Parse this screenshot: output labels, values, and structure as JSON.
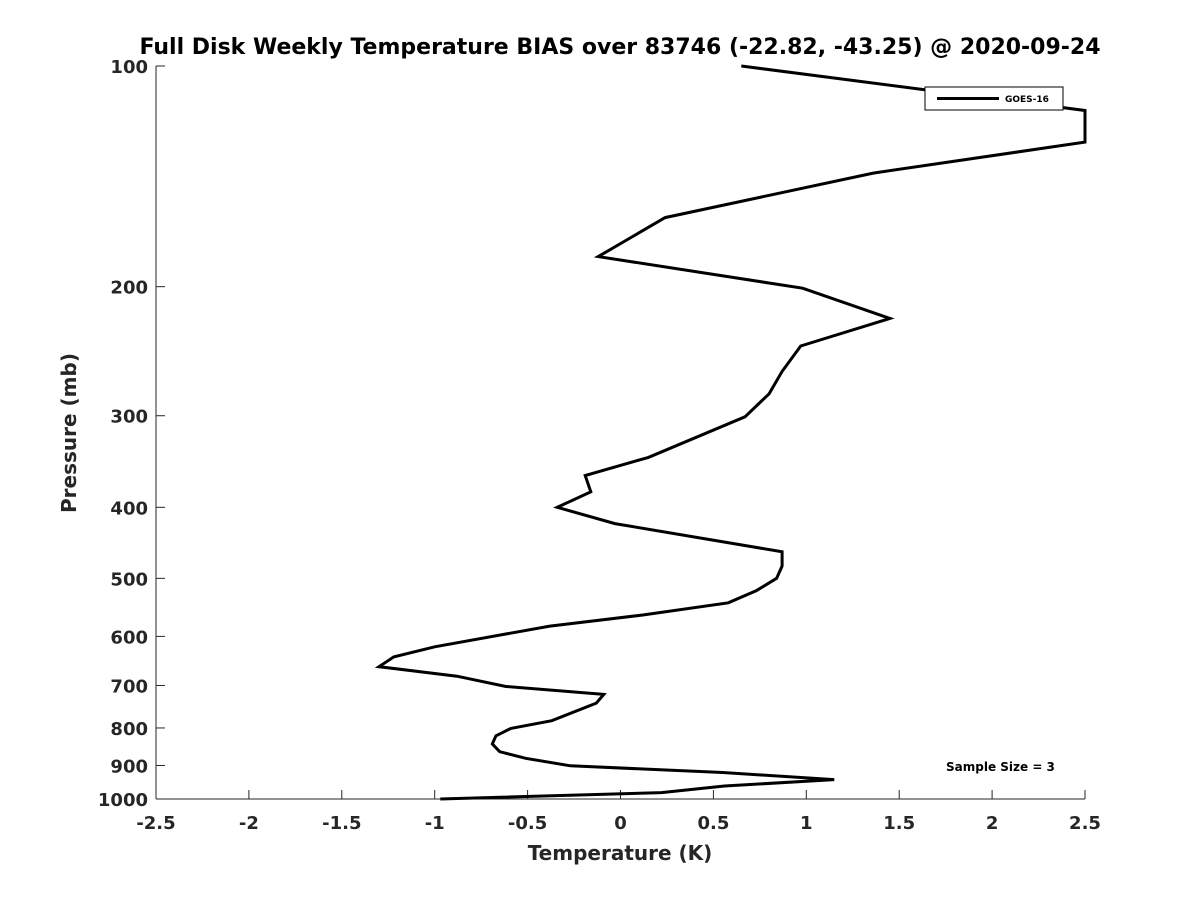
{
  "chart_data": {
    "type": "line",
    "title": "Full Disk Weekly Temperature BIAS over 83746 (-22.82, -43.25) @ 2020-09-24",
    "xlabel": "Temperature (K)",
    "ylabel": "Pressure (mb)",
    "xlim": [
      -2.5,
      2.5
    ],
    "ylim": [
      100,
      1000
    ],
    "y_scale": "log",
    "y_reversed": true,
    "grid": false,
    "legend_position": "top-right",
    "x_ticks": [
      "-2.5",
      "-2",
      "-1.5",
      "-1",
      "-0.5",
      "0",
      "0.5",
      "1",
      "1.5",
      "2",
      "2.5"
    ],
    "x_tick_values": [
      -2.5,
      -2,
      -1.5,
      -1,
      -0.5,
      0,
      0.5,
      1,
      1.5,
      2,
      2.5
    ],
    "y_ticks": [
      "100",
      "200",
      "300",
      "400",
      "500",
      "600",
      "700",
      "800",
      "900",
      "1000"
    ],
    "y_tick_values": [
      100,
      200,
      300,
      400,
      500,
      600,
      700,
      800,
      900,
      1000
    ],
    "annotation": "Sample Size = 3",
    "series": [
      {
        "name": "GOES-16",
        "color": "#000000",
        "points": [
          {
            "x": 0.65,
            "y": 100
          },
          {
            "x": 2.5,
            "y": 115
          },
          {
            "x": 2.5,
            "y": 127
          },
          {
            "x": 1.36,
            "y": 140
          },
          {
            "x": 0.24,
            "y": 161
          },
          {
            "x": -0.12,
            "y": 182
          },
          {
            "x": 0.98,
            "y": 201
          },
          {
            "x": 1.45,
            "y": 221
          },
          {
            "x": 0.97,
            "y": 241
          },
          {
            "x": 0.87,
            "y": 261
          },
          {
            "x": 0.8,
            "y": 280
          },
          {
            "x": 0.67,
            "y": 301
          },
          {
            "x": 0.15,
            "y": 342
          },
          {
            "x": -0.19,
            "y": 362
          },
          {
            "x": -0.16,
            "y": 381
          },
          {
            "x": -0.34,
            "y": 400
          },
          {
            "x": -0.03,
            "y": 421
          },
          {
            "x": 0.87,
            "y": 460
          },
          {
            "x": 0.87,
            "y": 481
          },
          {
            "x": 0.84,
            "y": 500
          },
          {
            "x": 0.73,
            "y": 520
          },
          {
            "x": 0.58,
            "y": 540
          },
          {
            "x": 0.12,
            "y": 561
          },
          {
            "x": -0.38,
            "y": 581
          },
          {
            "x": -1.0,
            "y": 620
          },
          {
            "x": -1.22,
            "y": 640
          },
          {
            "x": -1.3,
            "y": 660
          },
          {
            "x": -0.88,
            "y": 680
          },
          {
            "x": -0.62,
            "y": 702
          },
          {
            "x": -0.09,
            "y": 720
          },
          {
            "x": -0.13,
            "y": 740
          },
          {
            "x": -0.37,
            "y": 782
          },
          {
            "x": -0.59,
            "y": 801
          },
          {
            "x": -0.67,
            "y": 820
          },
          {
            "x": -0.69,
            "y": 841
          },
          {
            "x": -0.65,
            "y": 862
          },
          {
            "x": -0.51,
            "y": 880
          },
          {
            "x": -0.27,
            "y": 901
          },
          {
            "x": 0.55,
            "y": 920
          },
          {
            "x": 1.15,
            "y": 941
          },
          {
            "x": 0.56,
            "y": 960
          },
          {
            "x": 0.22,
            "y": 980
          },
          {
            "x": -0.97,
            "y": 1000
          }
        ]
      }
    ]
  }
}
